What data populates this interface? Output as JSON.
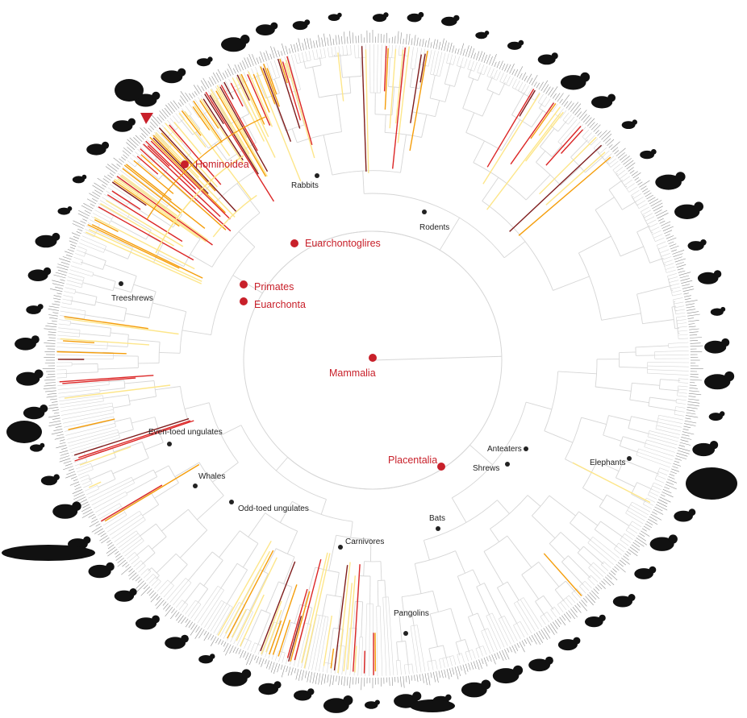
{
  "figure": {
    "highlight_clades": [
      {
        "id": "hominoidea",
        "label": "Hominoidea"
      },
      {
        "id": "euarchontoglires",
        "label": "Euarchontoglires"
      },
      {
        "id": "primates",
        "label": "Primates"
      },
      {
        "id": "euarchonta",
        "label": "Euarchonta"
      },
      {
        "id": "mammalia",
        "label": "Mammalia"
      },
      {
        "id": "placentalia",
        "label": "Placentalia"
      }
    ],
    "clades": [
      {
        "id": "rabbits",
        "label": "Rabbits"
      },
      {
        "id": "rodents",
        "label": "Rodents"
      },
      {
        "id": "treeshrews",
        "label": "Treeshrews"
      },
      {
        "id": "even-toed-ungulates",
        "label": "Even-toed ungulates"
      },
      {
        "id": "whales",
        "label": "Whales"
      },
      {
        "id": "odd-toed-ungulates",
        "label": "Odd-toed ungulates"
      },
      {
        "id": "carnivores",
        "label": "Carnivores"
      },
      {
        "id": "bats",
        "label": "Bats"
      },
      {
        "id": "pangolins",
        "label": "Pangolins"
      },
      {
        "id": "anteaters",
        "label": "Anteaters"
      },
      {
        "id": "shrews",
        "label": "Shrews"
      },
      {
        "id": "elephants",
        "label": "Elephants"
      }
    ],
    "colors": {
      "highlight": "#c8202a",
      "node": "#222222",
      "branch": "#d6d6d6",
      "ring": "#8e8e8e",
      "heat_low": "#fde68a",
      "heat_mid": "#f59e0b",
      "heat_high": "#dc2626",
      "heat_max": "#7f1d1d",
      "silhouette": "#111111"
    },
    "silhouettes": [
      "monkey-icon",
      "gibbon-icon",
      "rabbit-icon",
      "hare-icon",
      "mole-icon",
      "beaver-icon",
      "mouse-icon",
      "porcupine-icon",
      "rat-icon",
      "squirrel-icon",
      "elephant-icon",
      "kangaroo-icon",
      "bat-icon",
      "pangolin-icon",
      "lion-icon",
      "wolf-icon",
      "bear-icon",
      "seal-icon",
      "rhinoceros-icon",
      "hippopotamus-icon",
      "whale-icon",
      "giraffe-icon",
      "moose-icon",
      "bison-icon",
      "deer-icon",
      "buffalo-icon",
      "gorilla-icon",
      "lemur-icon"
    ]
  }
}
